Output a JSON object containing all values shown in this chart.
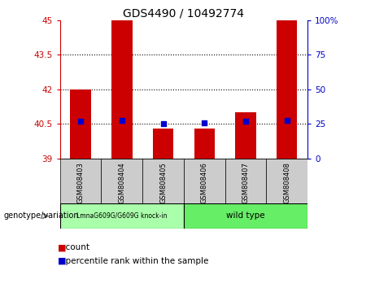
{
  "title": "GDS4490 / 10492774",
  "samples": [
    "GSM808403",
    "GSM808404",
    "GSM808405",
    "GSM808406",
    "GSM808407",
    "GSM808408"
  ],
  "bar_heights": [
    42.0,
    45.0,
    40.3,
    40.3,
    41.0,
    45.0
  ],
  "bar_base": 39.0,
  "percentile_values": [
    40.6,
    40.65,
    40.5,
    40.55,
    40.6,
    40.65
  ],
  "ylim_left": [
    39.0,
    45.0
  ],
  "yticks_left": [
    39.0,
    40.5,
    42.0,
    43.5,
    45.0
  ],
  "ytick_labels_left": [
    "39",
    "40.5",
    "42",
    "43.5",
    "45"
  ],
  "yticks_right": [
    0,
    25,
    50,
    75,
    100
  ],
  "ytick_labels_right": [
    "0",
    "25",
    "50",
    "75",
    "100%"
  ],
  "hlines": [
    40.5,
    42.0,
    43.5
  ],
  "bar_color": "#cc0000",
  "bar_width": 0.5,
  "dot_color": "#0000cc",
  "dot_size": 18,
  "group1_label": "LmnaG609G/G609G knock-in",
  "group2_label": "wild type",
  "group1_color": "#aaffaa",
  "group2_color": "#66ee66",
  "label_color_left": "#cc0000",
  "label_color_right": "#0000cc",
  "legend_count_color": "#cc0000",
  "legend_pct_color": "#0000cc",
  "genotype_label": "genotype/variation",
  "arrow_color": "#888888",
  "cell_bg": "#cccccc"
}
